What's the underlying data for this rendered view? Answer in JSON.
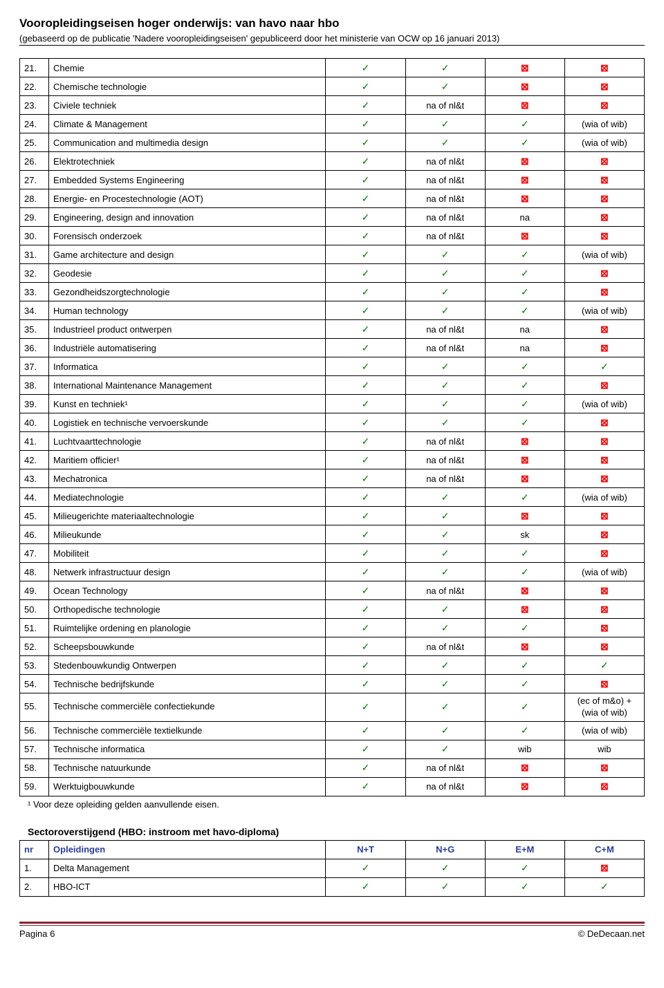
{
  "header": {
    "title": "Vooropleidingseisen hoger onderwijs: van havo naar hbo",
    "subtitle": "(gebaseerd op de publicatie 'Nadere vooropleidingseisen' gepubliceerd door het ministerie van OCW op 16 januari 2013)"
  },
  "symbols": {
    "check": "✓",
    "cross": "⊠"
  },
  "colors": {
    "check": "#008000",
    "cross": "#ff0000",
    "header_blue": "#2a3da0",
    "rule": "#8a2430"
  },
  "main_rows": [
    {
      "n": "21.",
      "name": "Chemie",
      "c": [
        "check",
        "check",
        "cross",
        "cross"
      ]
    },
    {
      "n": "22.",
      "name": "Chemische technologie",
      "c": [
        "check",
        "check",
        "cross",
        "cross"
      ]
    },
    {
      "n": "23.",
      "name": "Civiele techniek",
      "c": [
        "check",
        "na of nl&t",
        "cross",
        "cross"
      ]
    },
    {
      "n": "24.",
      "name": "Climate & Management",
      "c": [
        "check",
        "check",
        "check",
        "(wia of wib)"
      ]
    },
    {
      "n": "25.",
      "name": "Communication and multimedia design",
      "c": [
        "check",
        "check",
        "check",
        "(wia of wib)"
      ]
    },
    {
      "n": "26.",
      "name": "Elektrotechniek",
      "c": [
        "check",
        "na of nl&t",
        "cross",
        "cross"
      ]
    },
    {
      "n": "27.",
      "name": "Embedded Systems Engineering",
      "c": [
        "check",
        "na of nl&t",
        "cross",
        "cross"
      ]
    },
    {
      "n": "28.",
      "name": "Energie- en Procestechnologie (AOT)",
      "c": [
        "check",
        "na of nl&t",
        "cross",
        "cross"
      ]
    },
    {
      "n": "29.",
      "name": "Engineering, design and innovation",
      "c": [
        "check",
        "na of nl&t",
        "na",
        "cross"
      ]
    },
    {
      "n": "30.",
      "name": "Forensisch onderzoek",
      "c": [
        "check",
        "na of nl&t",
        "cross",
        "cross"
      ]
    },
    {
      "n": "31.",
      "name": "Game architecture and design",
      "c": [
        "check",
        "check",
        "check",
        "(wia of wib)"
      ]
    },
    {
      "n": "32.",
      "name": "Geodesie",
      "c": [
        "check",
        "check",
        "check",
        "cross"
      ]
    },
    {
      "n": "33.",
      "name": "Gezondheidszorgtechnologie",
      "c": [
        "check",
        "check",
        "check",
        "cross"
      ]
    },
    {
      "n": "34.",
      "name": "Human technology",
      "c": [
        "check",
        "check",
        "check",
        "(wia of wib)"
      ]
    },
    {
      "n": "35.",
      "name": "Industrieel product ontwerpen",
      "c": [
        "check",
        "na of nl&t",
        "na",
        "cross"
      ]
    },
    {
      "n": "36.",
      "name": "Industriële automatisering",
      "c": [
        "check",
        "na of nl&t",
        "na",
        "cross"
      ]
    },
    {
      "n": "37.",
      "name": "Informatica",
      "c": [
        "check",
        "check",
        "check",
        "check"
      ]
    },
    {
      "n": "38.",
      "name": "International Maintenance Management",
      "c": [
        "check",
        "check",
        "check",
        "cross"
      ]
    },
    {
      "n": "39.",
      "name": "Kunst en techniek¹",
      "c": [
        "check",
        "check",
        "check",
        "(wia of wib)"
      ]
    },
    {
      "n": "40.",
      "name": "Logistiek en technische vervoerskunde",
      "c": [
        "check",
        "check",
        "check",
        "cross"
      ]
    },
    {
      "n": "41.",
      "name": "Luchtvaarttechnologie",
      "c": [
        "check",
        "na of nl&t",
        "cross",
        "cross"
      ]
    },
    {
      "n": "42.",
      "name": "Maritiem officier¹",
      "c": [
        "check",
        "na of nl&t",
        "cross",
        "cross"
      ]
    },
    {
      "n": "43.",
      "name": "Mechatronica",
      "c": [
        "check",
        "na of nl&t",
        "cross",
        "cross"
      ]
    },
    {
      "n": "44.",
      "name": "Mediatechnologie",
      "c": [
        "check",
        "check",
        "check",
        "(wia of wib)"
      ]
    },
    {
      "n": "45.",
      "name": "Milieugerichte materiaaltechnologie",
      "c": [
        "check",
        "check",
        "cross",
        "cross"
      ]
    },
    {
      "n": "46.",
      "name": "Milieukunde",
      "c": [
        "check",
        "check",
        "sk",
        "cross"
      ]
    },
    {
      "n": "47.",
      "name": "Mobiliteit",
      "c": [
        "check",
        "check",
        "check",
        "cross"
      ]
    },
    {
      "n": "48.",
      "name": "Netwerk infrastructuur design",
      "c": [
        "check",
        "check",
        "check",
        "(wia of wib)"
      ]
    },
    {
      "n": "49.",
      "name": "Ocean Technology",
      "c": [
        "check",
        "na of nl&t",
        "cross",
        "cross"
      ]
    },
    {
      "n": "50.",
      "name": "Orthopedische technologie",
      "c": [
        "check",
        "check",
        "cross",
        "cross"
      ]
    },
    {
      "n": "51.",
      "name": "Ruimtelijke ordening en planologie",
      "c": [
        "check",
        "check",
        "check",
        "cross"
      ]
    },
    {
      "n": "52.",
      "name": "Scheepsbouwkunde",
      "c": [
        "check",
        "na of nl&t",
        "cross",
        "cross"
      ]
    },
    {
      "n": "53.",
      "name": "Stedenbouwkundig Ontwerpen",
      "c": [
        "check",
        "check",
        "check",
        "check"
      ]
    },
    {
      "n": "54.",
      "name": "Technische bedrijfskunde",
      "c": [
        "check",
        "check",
        "check",
        "cross"
      ]
    },
    {
      "n": "55.",
      "name": "Technische commerciële confectiekunde",
      "c": [
        "check",
        "check",
        "check",
        "(ec of m&o) + (wia of wib)"
      ],
      "twoline": true
    },
    {
      "n": "56.",
      "name": "Technische commerciële textielkunde",
      "c": [
        "check",
        "check",
        "check",
        "(wia of wib)"
      ]
    },
    {
      "n": "57.",
      "name": "Technische informatica",
      "c": [
        "check",
        "check",
        "wib",
        "wib"
      ]
    },
    {
      "n": "58.",
      "name": "Technische natuurkunde",
      "c": [
        "check",
        "na of nl&t",
        "cross",
        "cross"
      ]
    },
    {
      "n": "59.",
      "name": "Werktuigbouwkunde",
      "c": [
        "check",
        "na of nl&t",
        "cross",
        "cross"
      ]
    }
  ],
  "footnote": "¹ Voor deze opleiding gelden aanvullende eisen.",
  "section2": {
    "heading": "Sectoroverstijgend (HBO: instroom met havo-diploma)",
    "headers": {
      "nr": "nr",
      "op": "Opleidingen",
      "c1": "N+T",
      "c2": "N+G",
      "c3": "E+M",
      "c4": "C+M"
    },
    "rows": [
      {
        "n": "1.",
        "name": "Delta Management",
        "c": [
          "check",
          "check",
          "check",
          "cross"
        ]
      },
      {
        "n": "2.",
        "name": "HBO-ICT",
        "c": [
          "check",
          "check",
          "check",
          "check"
        ]
      }
    ]
  },
  "footer": {
    "left": "Pagina 6",
    "right": "© DeDecaan.net"
  }
}
